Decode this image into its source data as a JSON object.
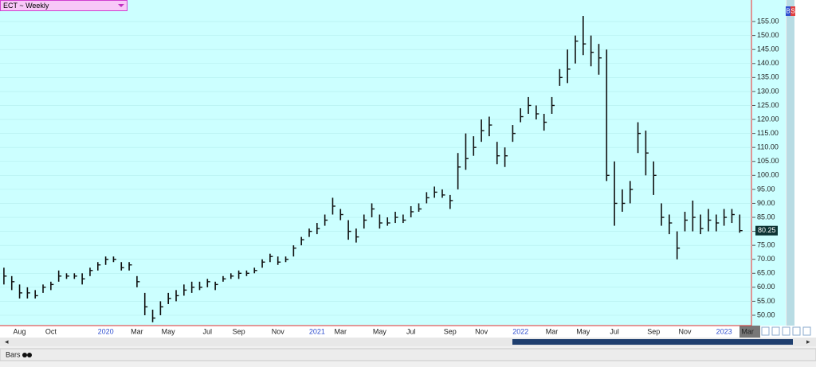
{
  "chart_data": {
    "type": "ohlc",
    "title": "ECT ~ Weekly",
    "categories": [
      null,
      null,
      "Aug",
      null,
      null,
      null,
      "Oct",
      null,
      null,
      null,
      null,
      null,
      null,
      "2020",
      null,
      null,
      null,
      "Mar",
      null,
      null,
      null,
      "May",
      null,
      null,
      null,
      null,
      "Jul",
      null,
      null,
      null,
      "Sep",
      null,
      null,
      null,
      null,
      "Nov",
      null,
      null,
      null,
      null,
      "2021",
      null,
      null,
      "Mar",
      null,
      null,
      null,
      null,
      "May",
      null,
      null,
      null,
      "Jul",
      null,
      null,
      null,
      null,
      "Sep",
      null,
      null,
      null,
      "Nov",
      null,
      null,
      null,
      null,
      "2022",
      null,
      null,
      null,
      "Mar",
      null,
      null,
      null,
      "May",
      null,
      null,
      null,
      "Jul",
      null,
      null,
      null,
      null,
      "Sep",
      null,
      null,
      null,
      "Nov",
      null,
      null,
      null,
      null,
      "2023",
      null,
      null,
      "Mar"
    ],
    "high": [
      67,
      64,
      61,
      60,
      59,
      61,
      62,
      66,
      65,
      65,
      65,
      67,
      69,
      71,
      71,
      69,
      69,
      64,
      58,
      52,
      55,
      58,
      59,
      61,
      62,
      62,
      63,
      62,
      64,
      65,
      66,
      66,
      67,
      70,
      72,
      71,
      71,
      75,
      78,
      81,
      83,
      86,
      92,
      88,
      84,
      81,
      86,
      90,
      86,
      85,
      87,
      86,
      89,
      90,
      94,
      96,
      95,
      93,
      108,
      115,
      114,
      120,
      121,
      112,
      110,
      118,
      124,
      128,
      125,
      122,
      128,
      138,
      145,
      150,
      157,
      150,
      147,
      145,
      105,
      95,
      98,
      119,
      116,
      105,
      90,
      86,
      80,
      87,
      91,
      86,
      88,
      86,
      88,
      88,
      86,
      null
    ],
    "low": [
      61,
      59,
      56,
      56,
      56,
      58,
      59,
      62,
      63,
      63,
      61,
      64,
      66,
      68,
      69,
      66,
      66,
      60,
      50,
      47.5,
      50,
      54,
      55,
      57,
      58,
      59,
      60,
      59,
      62,
      63,
      63,
      64,
      65,
      67,
      69,
      68,
      69,
      71,
      75,
      78,
      79,
      82,
      86,
      84,
      77,
      76,
      81,
      85,
      81,
      82,
      83,
      83,
      85,
      87,
      90,
      92,
      92,
      88,
      95,
      102,
      107,
      112,
      114,
      104,
      103,
      112,
      119,
      122,
      120,
      116,
      122,
      132,
      133,
      140,
      143,
      139,
      136,
      98,
      82,
      87,
      90,
      108,
      100,
      93,
      82,
      79,
      70,
      80,
      80,
      79,
      80,
      80,
      82,
      83,
      79.5,
      null
    ],
    "close": [
      64,
      62,
      58,
      58,
      57,
      60,
      61,
      64,
      64,
      64,
      63,
      66,
      68,
      70,
      70,
      67,
      68,
      62,
      53,
      49,
      53,
      56,
      57,
      59,
      60,
      60,
      62,
      61,
      63,
      64,
      65,
      65,
      66,
      69,
      71,
      69,
      70,
      74,
      77,
      80,
      81,
      84,
      89,
      86,
      80,
      78,
      84,
      88,
      83,
      83,
      85,
      84,
      87,
      88,
      92,
      94,
      93,
      91,
      103,
      106,
      110,
      116,
      118,
      107,
      107,
      115,
      121,
      125,
      122,
      119,
      125,
      135,
      138,
      148,
      147,
      144,
      142,
      100,
      90,
      90,
      95,
      115,
      108,
      100,
      85,
      83,
      74,
      84,
      85,
      81,
      84,
      83,
      85,
      86,
      80.25,
      null
    ],
    "color": "#111111",
    "background": "#ccffff",
    "grid": true,
    "ylim": [
      46.3,
      162.7
    ],
    "yticks": [
      {
        "value": 50,
        "label": "50.00"
      },
      {
        "value": 55,
        "label": "55.00"
      },
      {
        "value": 60,
        "label": "60.00"
      },
      {
        "value": 65,
        "label": "65.00"
      },
      {
        "value": 70,
        "label": "70.00"
      },
      {
        "value": 75,
        "label": "75.00"
      },
      {
        "value": 80,
        "label": "80.00"
      },
      {
        "value": 85,
        "label": "85.00"
      },
      {
        "value": 90,
        "label": "90.00"
      },
      {
        "value": 95,
        "label": "95.00"
      },
      {
        "value": 100,
        "label": "100.00"
      },
      {
        "value": 105,
        "label": "105.00"
      },
      {
        "value": 110,
        "label": "110.00"
      },
      {
        "value": 115,
        "label": "115.00"
      },
      {
        "value": 120,
        "label": "120.00"
      },
      {
        "value": 125,
        "label": "125.00"
      },
      {
        "value": 130,
        "label": "130.00"
      },
      {
        "value": 135,
        "label": "135.00"
      },
      {
        "value": 140,
        "label": "140.00"
      },
      {
        "value": 145,
        "label": "145.00"
      },
      {
        "value": 150,
        "label": "150.00"
      },
      {
        "value": 155,
        "label": "155.00"
      }
    ]
  },
  "ui": {
    "chart_style": "Bars",
    "badges": [
      "B",
      "S"
    ]
  }
}
